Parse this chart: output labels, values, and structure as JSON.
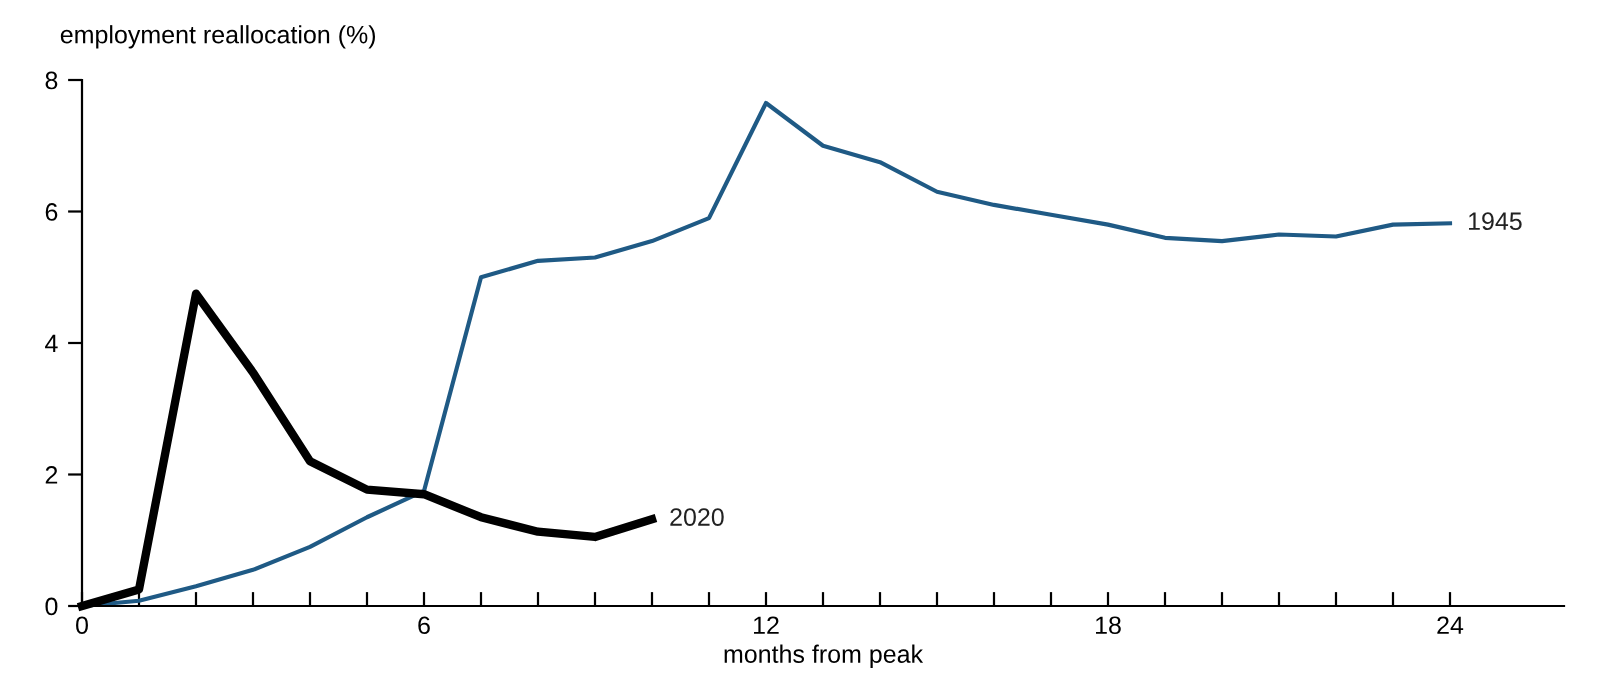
{
  "chart_data": {
    "type": "line",
    "ylabel": "employment reallocation (%)",
    "xlabel": "months from peak",
    "xlim": [
      0,
      26
    ],
    "xticks": [
      0,
      {
        "value": 1,
        "label": null
      },
      {
        "value": 2,
        "label": null
      },
      {
        "value": 3,
        "label": null
      },
      {
        "value": 4,
        "label": null
      },
      {
        "value": 5,
        "label": null
      },
      6,
      {
        "value": 7,
        "label": null
      },
      {
        "value": 8,
        "label": null
      },
      {
        "value": 9,
        "label": null
      },
      {
        "value": 10,
        "label": null
      },
      {
        "value": 11,
        "label": null
      },
      12,
      {
        "value": 13,
        "label": null
      },
      {
        "value": 14,
        "label": null
      },
      {
        "value": 15,
        "label": null
      },
      {
        "value": 16,
        "label": null
      },
      {
        "value": 17,
        "label": null
      },
      18,
      {
        "value": 19,
        "label": null
      },
      {
        "value": 20,
        "label": null
      },
      {
        "value": 21,
        "label": null
      },
      {
        "value": 22,
        "label": null
      },
      {
        "value": 23,
        "label": null
      },
      24
    ],
    "ylim": [
      0,
      8
    ],
    "yticks": [
      0,
      2,
      4,
      6,
      8
    ],
    "grid": false,
    "legend": false,
    "marker": "none",
    "line_style": "solid",
    "series": [
      {
        "name": "1945",
        "color": "#1f5a85",
        "x": [
          0,
          1,
          2,
          3,
          4,
          5,
          6,
          7,
          8,
          9,
          10,
          11,
          12,
          13,
          14,
          15,
          16,
          17,
          18,
          19,
          20,
          21,
          22,
          23,
          24
        ],
        "values": [
          0,
          0.08,
          0.3,
          0.55,
          0.9,
          1.35,
          1.75,
          5.0,
          5.25,
          5.3,
          5.55,
          5.9,
          7.65,
          7.0,
          6.75,
          6.3,
          6.1,
          5.95,
          5.8,
          5.6,
          5.55,
          5.65,
          5.62,
          5.8,
          5.82
        ]
      },
      {
        "name": "2020",
        "color": "#000000",
        "x": [
          0,
          1,
          2,
          3,
          4,
          5,
          6,
          7,
          8,
          9,
          10
        ],
        "values": [
          0,
          0.25,
          4.75,
          3.55,
          2.2,
          1.77,
          1.7,
          1.35,
          1.13,
          1.05,
          1.32
        ]
      }
    ]
  }
}
